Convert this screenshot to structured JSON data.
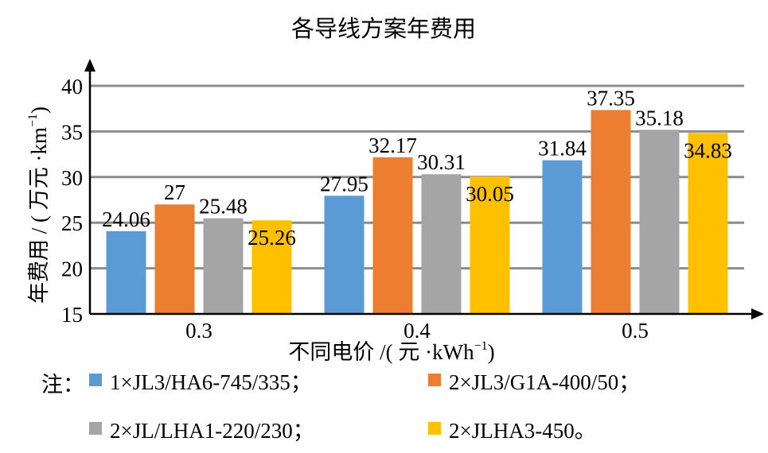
{
  "chart_data": {
    "type": "bar",
    "title": "各导线方案年费用",
    "xlabel_main": "不同电价 /( 元 ·kWh",
    "xlabel_sup": "−1",
    "xlabel_end": ")",
    "ylabel_main": "年费用 / ( 万元 ·km",
    "ylabel_sup": "−1",
    "ylabel_end": ")",
    "categories": [
      "0.3",
      "0.4",
      "0.5"
    ],
    "ylim": [
      15,
      40
    ],
    "yticks": [
      "15",
      "20",
      "25",
      "30",
      "35",
      "40"
    ],
    "grid": true,
    "legend_position": "bottom",
    "series": [
      {
        "name": "1×JL3/HA6-745/335；",
        "color": "#5B9BD5",
        "values": [
          24.06,
          27.95,
          31.84
        ],
        "labels": [
          "24.06",
          "27.95",
          "31.84"
        ]
      },
      {
        "name": "2×JL3/G1A-400/50；",
        "color": "#ED7D31",
        "values": [
          27,
          32.17,
          37.35
        ],
        "labels": [
          "27",
          "32.17",
          "37.35"
        ]
      },
      {
        "name": "2×JL/LHA1-220/230；",
        "color": "#A5A5A5",
        "values": [
          25.48,
          30.31,
          35.18
        ],
        "labels": [
          "25.48",
          "30.31",
          "35.18"
        ]
      },
      {
        "name": "2×JLHA3-450。",
        "color": "#FFC000",
        "values": [
          25.26,
          30.05,
          34.83
        ],
        "labels": [
          "25.26",
          "30.05",
          "34.83"
        ]
      }
    ]
  },
  "legend": {
    "note_label": "注："
  }
}
